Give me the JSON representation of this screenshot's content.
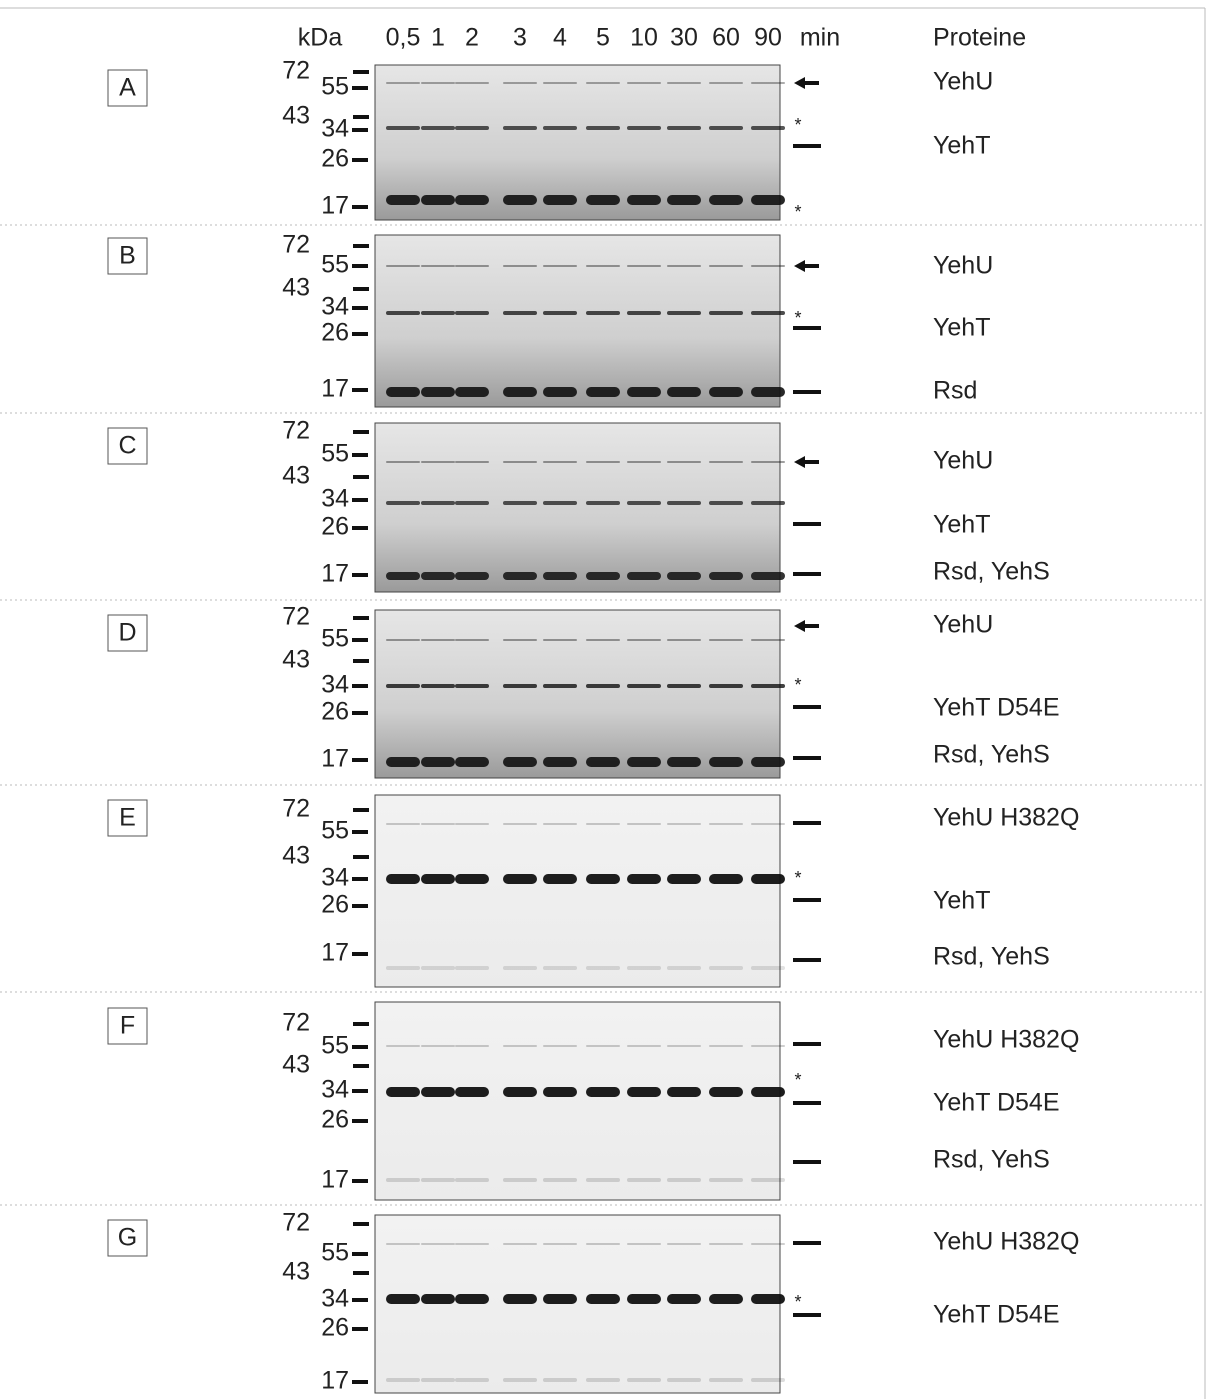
{
  "header": {
    "unit": "kDa",
    "lanes": [
      "0,5",
      "1",
      "2",
      "3",
      "4",
      "5",
      "10",
      "30",
      "60",
      "90"
    ],
    "time_unit": "min",
    "protein_heading": "Proteine"
  },
  "panels": [
    {
      "label": "A",
      "markers": [
        "72",
        "55",
        "43",
        "34",
        "26",
        "17"
      ],
      "proteins": [
        "YehU",
        "YehT"
      ],
      "asterisks": [
        "*",
        "*"
      ]
    },
    {
      "label": "B",
      "markers": [
        "72",
        "55",
        "43",
        "34",
        "26",
        "17"
      ],
      "proteins": [
        "YehU",
        "YehT",
        "Rsd"
      ],
      "asterisks": [
        "*"
      ]
    },
    {
      "label": "C",
      "markers": [
        "72",
        "55",
        "43",
        "34",
        "26",
        "17"
      ],
      "proteins": [
        "YehU",
        "YehT",
        "Rsd, YehS"
      ],
      "asterisks": []
    },
    {
      "label": "D",
      "markers": [
        "72",
        "55",
        "43",
        "34",
        "26",
        "17"
      ],
      "proteins": [
        "YehU",
        "YehT D54E",
        "Rsd, YehS"
      ],
      "asterisks": [
        "*"
      ]
    },
    {
      "label": "E",
      "markers": [
        "72",
        "55",
        "43",
        "34",
        "26",
        "17"
      ],
      "proteins": [
        "YehU H382Q",
        "YehT",
        "Rsd, YehS"
      ],
      "asterisks": [
        "*"
      ]
    },
    {
      "label": "F",
      "markers": [
        "72",
        "55",
        "43",
        "34",
        "26",
        "17"
      ],
      "proteins": [
        "YehU H382Q",
        "YehT D54E",
        "Rsd, YehS"
      ],
      "asterisks": [
        "*"
      ]
    },
    {
      "label": "G",
      "markers": [
        "72",
        "55",
        "43",
        "34",
        "26",
        "17"
      ],
      "proteins": [
        "YehU H382Q",
        "YehT D54E"
      ],
      "asterisks": [
        "*"
      ]
    }
  ]
}
